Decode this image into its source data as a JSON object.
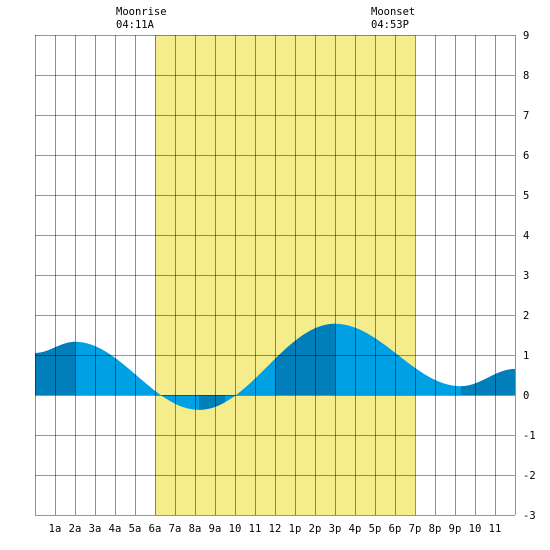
{
  "colors": {
    "daylight": "#f5ec8b",
    "tide_light": "#00a0e4",
    "tide_dark": "#007fba",
    "grid": "#000000",
    "background": "#ffffff"
  },
  "annotations": {
    "moonrise": {
      "label": "Moonrise",
      "time": "04:11A",
      "hour": 4.18
    },
    "moonset": {
      "label": "Moonset",
      "time": "04:53P",
      "hour": 16.88
    }
  },
  "chart_data": {
    "type": "area",
    "xlim": [
      0,
      24
    ],
    "ylim": [
      -3,
      9
    ],
    "grid": true,
    "daylight": [
      6,
      19
    ],
    "x_ticks": [
      {
        "hour": 1,
        "label": "1a"
      },
      {
        "hour": 2,
        "label": "2a"
      },
      {
        "hour": 3,
        "label": "3a"
      },
      {
        "hour": 4,
        "label": "4a"
      },
      {
        "hour": 5,
        "label": "5a"
      },
      {
        "hour": 6,
        "label": "6a"
      },
      {
        "hour": 7,
        "label": "7a"
      },
      {
        "hour": 8,
        "label": "8a"
      },
      {
        "hour": 9,
        "label": "9a"
      },
      {
        "hour": 10,
        "label": "10"
      },
      {
        "hour": 11,
        "label": "11"
      },
      {
        "hour": 12,
        "label": "12"
      },
      {
        "hour": 13,
        "label": "1p"
      },
      {
        "hour": 14,
        "label": "2p"
      },
      {
        "hour": 15,
        "label": "3p"
      },
      {
        "hour": 16,
        "label": "4p"
      },
      {
        "hour": 17,
        "label": "5p"
      },
      {
        "hour": 18,
        "label": "6p"
      },
      {
        "hour": 19,
        "label": "7p"
      },
      {
        "hour": 20,
        "label": "8p"
      },
      {
        "hour": 21,
        "label": "9p"
      },
      {
        "hour": 22,
        "label": "10"
      },
      {
        "hour": 23,
        "label": "11"
      }
    ],
    "y_ticks": [
      {
        "value": 9,
        "label": "9"
      },
      {
        "value": 8,
        "label": "8"
      },
      {
        "value": 7,
        "label": "7"
      },
      {
        "value": 6,
        "label": "6"
      },
      {
        "value": 5,
        "label": "5"
      },
      {
        "value": 4,
        "label": "4"
      },
      {
        "value": 3,
        "label": "3"
      },
      {
        "value": 2,
        "label": "2"
      },
      {
        "value": 1,
        "label": "1"
      },
      {
        "value": 0,
        "label": "0"
      },
      {
        "value": -1,
        "label": "-1"
      },
      {
        "value": -2,
        "label": "-2"
      },
      {
        "value": -3,
        "label": "-3"
      }
    ],
    "tide_extremes": [
      {
        "hour": 0,
        "value": 1.05
      },
      {
        "hour": 2,
        "value": 1.33
      },
      {
        "hour": 8.2,
        "value": -0.37
      },
      {
        "hour": 15,
        "value": 1.78
      },
      {
        "hour": 21.3,
        "value": 0.22
      },
      {
        "hour": 24,
        "value": 0.65
      }
    ],
    "dark_bands": [
      [
        0,
        2
      ],
      [
        8.2,
        9.5
      ],
      [
        12,
        15
      ],
      [
        21.3,
        24
      ]
    ]
  }
}
